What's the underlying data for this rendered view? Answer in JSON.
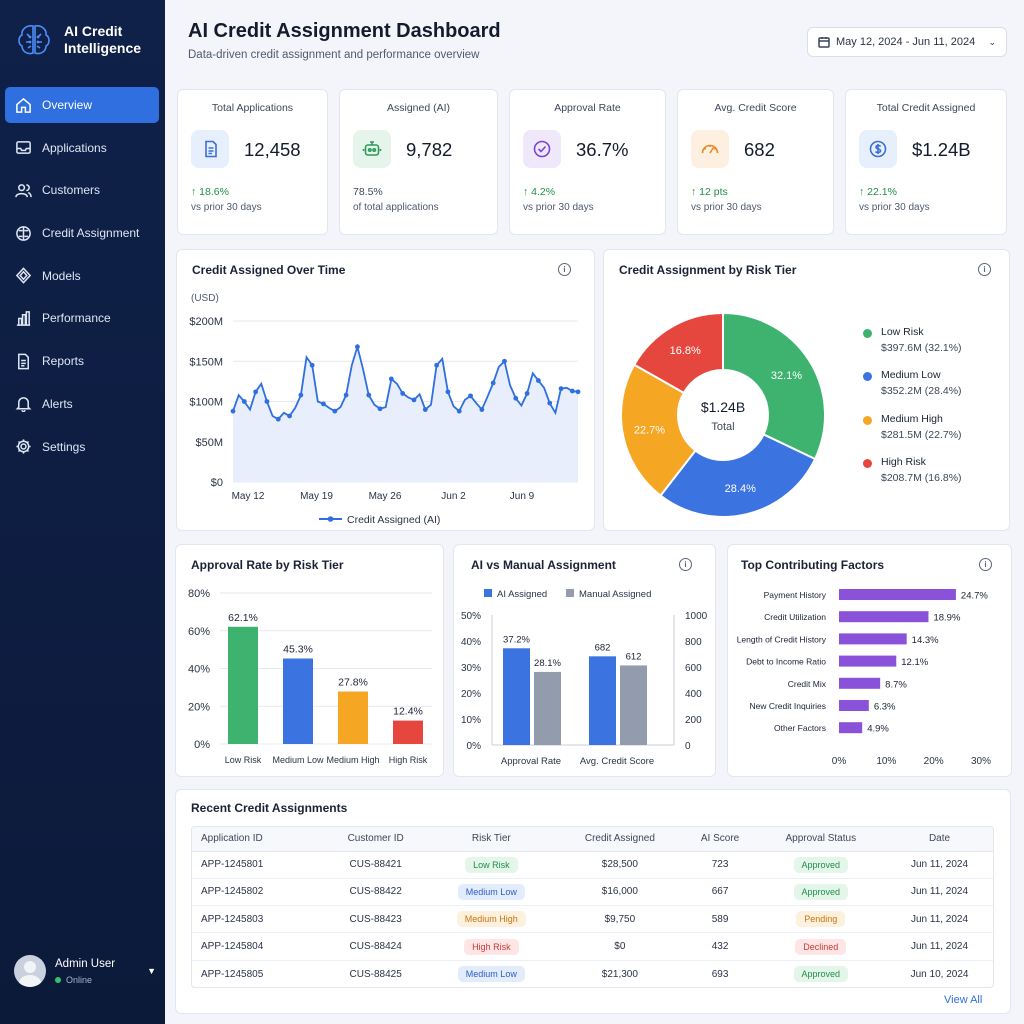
{
  "brand": {
    "name": "AI Credit Intelligence"
  },
  "sidebar": {
    "items": [
      {
        "label": "Overview",
        "icon": "home-icon",
        "active": true
      },
      {
        "label": "Applications",
        "icon": "inbox-icon"
      },
      {
        "label": "Customers",
        "icon": "users-icon"
      },
      {
        "label": "Credit Assignment",
        "icon": "brain-icon"
      },
      {
        "label": "Models",
        "icon": "cube-icon"
      },
      {
        "label": "Performance",
        "icon": "bar-chart-icon"
      },
      {
        "label": "Reports",
        "icon": "document-icon"
      },
      {
        "label": "Alerts",
        "icon": "bell-icon"
      },
      {
        "label": "Settings",
        "icon": "gear-icon"
      }
    ],
    "user": {
      "name": "Admin User",
      "status": "Online"
    }
  },
  "header": {
    "title": "AI Credit Assignment Dashboard",
    "subtitle": "Data-driven credit assignment and performance overview",
    "date_range": "May 12, 2024 - Jun 11, 2024"
  },
  "kpis": [
    {
      "label": "Total Applications",
      "value": "12,458",
      "delta": "↑ 18.6%",
      "note": "vs prior 30 days",
      "icon": "document-icon",
      "color": "#3b6fd6",
      "bg": "#e8effc"
    },
    {
      "label": "Assigned (AI)",
      "value": "9,782",
      "delta": "78.5%",
      "note": "of total applications",
      "icon": "robot-icon",
      "color": "#2f9a5a",
      "bg": "#e6f5ec"
    },
    {
      "label": "Approval Rate",
      "value": "36.7%",
      "delta": "↑ 4.2%",
      "note": "vs prior 30 days",
      "icon": "check-circle-icon",
      "color": "#7b45d1",
      "bg": "#efe8fb"
    },
    {
      "label": "Avg. Credit Score",
      "value": "682",
      "delta": "↑ 12 pts",
      "note": "vs prior 30 days",
      "icon": "gauge-icon",
      "color": "#e8891f",
      "bg": "#fdf0e1"
    },
    {
      "label": "Total Credit Assigned",
      "value": "$1.24B",
      "delta": "↑ 22.1%",
      "note": "vs prior 30 days",
      "icon": "dollar-icon",
      "color": "#3b6fd6",
      "bg": "#e8effc"
    }
  ],
  "colors": {
    "accent": "#2f6fe0",
    "low": "#3db36f",
    "medium_low": "#3b73e0",
    "medium_high": "#f5a623",
    "high": "#e5473f",
    "manual": "#939cad",
    "factor": "#8a52d9"
  },
  "chart_data": [
    {
      "type": "area",
      "title": "Credit Assigned Over Time",
      "ylabel": "(USD)",
      "ylim": [
        0,
        200
      ],
      "yticks": [
        "$0",
        "$50M",
        "$100M",
        "$150M",
        "$200M"
      ],
      "xticks": [
        "May 12",
        "May 19",
        "May 26",
        "Jun 2",
        "Jun 9"
      ],
      "grid": true,
      "legend_position": "bottom",
      "series": [
        {
          "name": "Credit Assigned (AI)",
          "values": [
            88,
            108,
            100,
            90,
            112,
            122,
            100,
            82,
            78,
            86,
            82,
            92,
            108,
            155,
            145,
            100,
            97,
            92,
            88,
            93,
            108,
            145,
            168,
            140,
            108,
            96,
            91,
            93,
            128,
            122,
            110,
            105,
            102,
            109,
            90,
            96,
            145,
            153,
            112,
            94,
            88,
            102,
            107,
            98,
            90,
            106,
            123,
            143,
            150,
            120,
            104,
            95,
            110,
            135,
            126,
            117,
            98,
            86,
            116,
            117,
            113,
            112
          ]
        }
      ]
    },
    {
      "type": "pie",
      "title": "Credit Assignment by Risk Tier",
      "center_value": "$1.24B",
      "center_label": "Total",
      "categories": [
        "Low Risk",
        "Medium Low",
        "Medium High",
        "High Risk"
      ],
      "values": [
        32.1,
        28.4,
        22.7,
        16.8
      ],
      "slice_labels": [
        "32.1%",
        "28.4%",
        "22.7%",
        "16.8%"
      ],
      "amounts": [
        "$397.6M (32.1%)",
        "$352.2M (28.4%)",
        "$281.5M (22.7%)",
        "$208.7M (16.8%)"
      ],
      "legend_position": "right"
    },
    {
      "type": "bar",
      "title": "Approval Rate by Risk Tier",
      "categories": [
        "Low Risk",
        "Medium Low",
        "Medium High",
        "High Risk"
      ],
      "values": [
        62.1,
        45.3,
        27.8,
        12.4
      ],
      "labels": [
        "62.1%",
        "45.3%",
        "27.8%",
        "12.4%"
      ],
      "ylim": [
        0,
        80
      ],
      "yticks": [
        "0%",
        "20%",
        "40%",
        "60%",
        "80%"
      ],
      "grid": true
    },
    {
      "type": "bar",
      "title": "AI vs Manual Assignment",
      "categories": [
        "Approval Rate",
        "Avg. Credit Score"
      ],
      "series": [
        {
          "name": "AI Assigned",
          "values": [
            37.2,
            682
          ],
          "labels": [
            "37.2%",
            "682"
          ]
        },
        {
          "name": "Manual Assigned",
          "values": [
            28.1,
            612
          ],
          "labels": [
            "28.1%",
            "612"
          ]
        }
      ],
      "ylim_left": [
        0,
        50
      ],
      "ylim_right": [
        0,
        1000
      ],
      "yticks_left": [
        "0%",
        "10%",
        "20%",
        "30%",
        "40%",
        "50%"
      ],
      "yticks_right": [
        "0",
        "200",
        "400",
        "600",
        "800",
        "1000"
      ],
      "legend_position": "top"
    },
    {
      "type": "bar",
      "orientation": "horizontal",
      "title": "Top Contributing Factors",
      "categories": [
        "Payment History",
        "Credit Utilization",
        "Length of Credit History",
        "Debt to Income Ratio",
        "Credit Mix",
        "New Credit Inquiries",
        "Other Factors"
      ],
      "values": [
        24.7,
        18.9,
        14.3,
        12.1,
        8.7,
        6.3,
        4.9
      ],
      "labels": [
        "24.7%",
        "18.9%",
        "14.3%",
        "12.1%",
        "8.7%",
        "6.3%",
        "4.9%"
      ],
      "xlim": [
        0,
        30
      ],
      "xticks": [
        "0%",
        "10%",
        "20%",
        "30%"
      ]
    }
  ],
  "recent": {
    "title": "Recent Credit Assignments",
    "columns": [
      "Application ID",
      "Customer ID",
      "Risk Tier",
      "Credit Assigned",
      "AI Score",
      "Approval Status",
      "Date"
    ],
    "rows": [
      [
        "APP-1245801",
        "CUS-88421",
        "Low Risk",
        "$28,500",
        "723",
        "Approved",
        "Jun 11, 2024"
      ],
      [
        "APP-1245802",
        "CUS-88422",
        "Medium Low",
        "$16,000",
        "667",
        "Approved",
        "Jun 11, 2024"
      ],
      [
        "APP-1245803",
        "CUS-88423",
        "Medium High",
        "$9,750",
        "589",
        "Pending",
        "Jun 11, 2024"
      ],
      [
        "APP-1245804",
        "CUS-88424",
        "High Risk",
        "$0",
        "432",
        "Declined",
        "Jun 11, 2024"
      ],
      [
        "APP-1245805",
        "CUS-88425",
        "Medium Low",
        "$21,300",
        "693",
        "Approved",
        "Jun 10, 2024"
      ]
    ],
    "view_all": "View All"
  }
}
